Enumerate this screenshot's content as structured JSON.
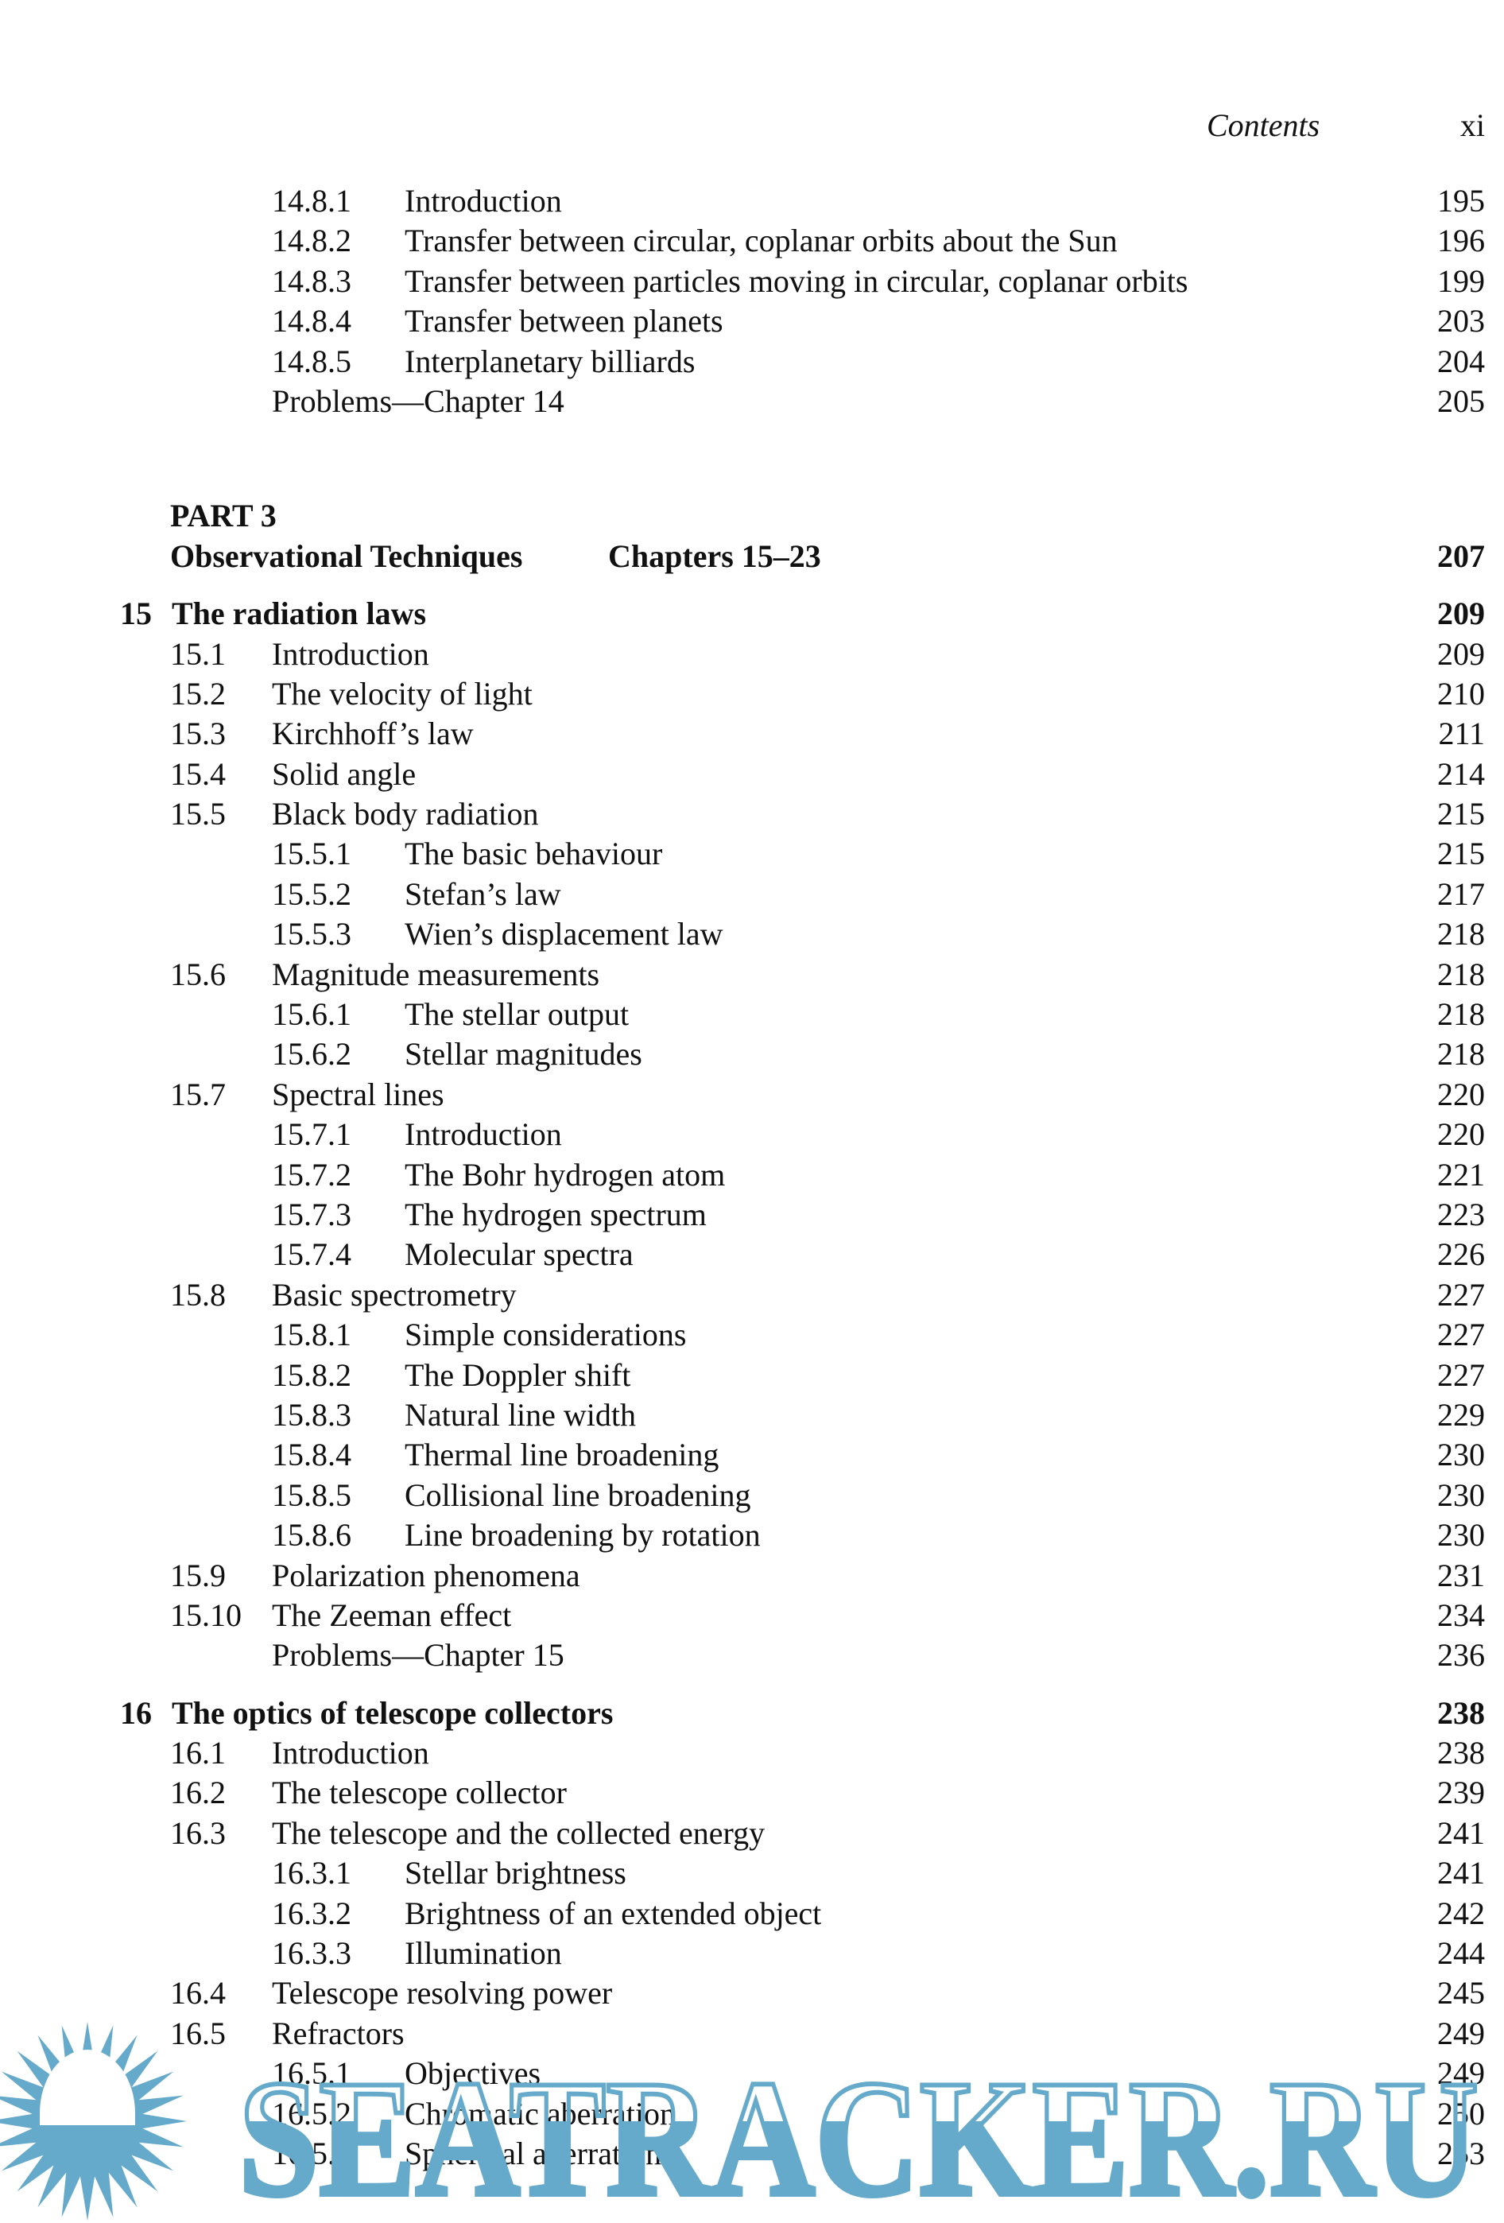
{
  "header": {
    "title": "Contents",
    "page": "xi"
  },
  "toc": [
    {
      "level": "subsection",
      "num": "14.8.1",
      "title": "Introduction",
      "page": "195"
    },
    {
      "level": "subsection",
      "num": "14.8.2",
      "title": "Transfer between circular, coplanar orbits about the Sun",
      "page": "196"
    },
    {
      "level": "subsection",
      "num": "14.8.3",
      "title": "Transfer between particles moving in circular, coplanar orbits",
      "page": "199"
    },
    {
      "level": "subsection",
      "num": "14.8.4",
      "title": "Transfer between planets",
      "page": "203"
    },
    {
      "level": "subsection",
      "num": "14.8.5",
      "title": "Interplanetary billiards",
      "page": "204"
    },
    {
      "level": "problems",
      "title": "Problems—Chapter 14",
      "page": "205"
    },
    {
      "level": "part-label",
      "title": "PART 3"
    },
    {
      "level": "part-title",
      "title": "Observational Techniques",
      "chapters": "Chapters 15–23",
      "page": "207"
    },
    {
      "level": "chapter",
      "num": "15",
      "title": "The radiation laws",
      "page": "209"
    },
    {
      "level": "section",
      "num": "15.1",
      "title": "Introduction",
      "page": "209"
    },
    {
      "level": "section",
      "num": "15.2",
      "title": "The velocity of light",
      "page": "210"
    },
    {
      "level": "section",
      "num": "15.3",
      "title": "Kirchhoff’s law",
      "page": "211"
    },
    {
      "level": "section",
      "num": "15.4",
      "title": "Solid angle",
      "page": "214"
    },
    {
      "level": "section",
      "num": "15.5",
      "title": "Black body radiation",
      "page": "215"
    },
    {
      "level": "subsection",
      "num": "15.5.1",
      "title": "The basic behaviour",
      "page": "215"
    },
    {
      "level": "subsection",
      "num": "15.5.2",
      "title": "Stefan’s law",
      "page": "217"
    },
    {
      "level": "subsection",
      "num": "15.5.3",
      "title": "Wien’s displacement law",
      "page": "218"
    },
    {
      "level": "section",
      "num": "15.6",
      "title": "Magnitude measurements",
      "page": "218"
    },
    {
      "level": "subsection",
      "num": "15.6.1",
      "title": "The stellar output",
      "page": "218"
    },
    {
      "level": "subsection",
      "num": "15.6.2",
      "title": "Stellar magnitudes",
      "page": "218"
    },
    {
      "level": "section",
      "num": "15.7",
      "title": "Spectral lines",
      "page": "220"
    },
    {
      "level": "subsection",
      "num": "15.7.1",
      "title": "Introduction",
      "page": "220"
    },
    {
      "level": "subsection",
      "num": "15.7.2",
      "title": "The Bohr hydrogen atom",
      "page": "221"
    },
    {
      "level": "subsection",
      "num": "15.7.3",
      "title": "The hydrogen spectrum",
      "page": "223"
    },
    {
      "level": "subsection",
      "num": "15.7.4",
      "title": "Molecular spectra",
      "page": "226"
    },
    {
      "level": "section",
      "num": "15.8",
      "title": "Basic spectrometry",
      "page": "227"
    },
    {
      "level": "subsection",
      "num": "15.8.1",
      "title": "Simple considerations",
      "page": "227"
    },
    {
      "level": "subsection",
      "num": "15.8.2",
      "title": "The Doppler shift",
      "page": "227"
    },
    {
      "level": "subsection",
      "num": "15.8.3",
      "title": "Natural line width",
      "page": "229"
    },
    {
      "level": "subsection",
      "num": "15.8.4",
      "title": "Thermal line broadening",
      "page": "230"
    },
    {
      "level": "subsection",
      "num": "15.8.5",
      "title": "Collisional line broadening",
      "page": "230"
    },
    {
      "level": "subsection",
      "num": "15.8.6",
      "title": "Line broadening by rotation",
      "page": "230"
    },
    {
      "level": "section",
      "num": "15.9",
      "title": "Polarization phenomena",
      "page": "231"
    },
    {
      "level": "section",
      "num": "15.10",
      "title": "The Zeeman effect",
      "page": "234"
    },
    {
      "level": "problems",
      "title": "Problems—Chapter 15",
      "page": "236"
    },
    {
      "level": "chapter",
      "num": "16",
      "title": "The optics of telescope collectors",
      "page": "238"
    },
    {
      "level": "section",
      "num": "16.1",
      "title": "Introduction",
      "page": "238"
    },
    {
      "level": "section",
      "num": "16.2",
      "title": "The telescope collector",
      "page": "239"
    },
    {
      "level": "section",
      "num": "16.3",
      "title": "The telescope and the collected energy",
      "page": "241"
    },
    {
      "level": "subsection",
      "num": "16.3.1",
      "title": "Stellar brightness",
      "page": "241"
    },
    {
      "level": "subsection",
      "num": "16.3.2",
      "title": "Brightness of an extended object",
      "page": "242"
    },
    {
      "level": "subsection",
      "num": "16.3.3",
      "title": "Illumination",
      "page": "244"
    },
    {
      "level": "section",
      "num": "16.4",
      "title": "Telescope resolving power",
      "page": "245"
    },
    {
      "level": "section",
      "num": "16.5",
      "title": "Refractors",
      "page": "249"
    },
    {
      "level": "subsection",
      "num": "16.5.1",
      "title": "Objectives",
      "page": "249"
    },
    {
      "level": "subsection",
      "num": "16.5.2",
      "title": "Chromatic aberration",
      "page": "250"
    },
    {
      "level": "subsection",
      "num": "16.5.3",
      "title": "Spherical aberration",
      "page": "253"
    }
  ],
  "watermark": {
    "text": "SEATRACKER.RU",
    "color": "#66aacb",
    "icon": "sun-icon"
  }
}
